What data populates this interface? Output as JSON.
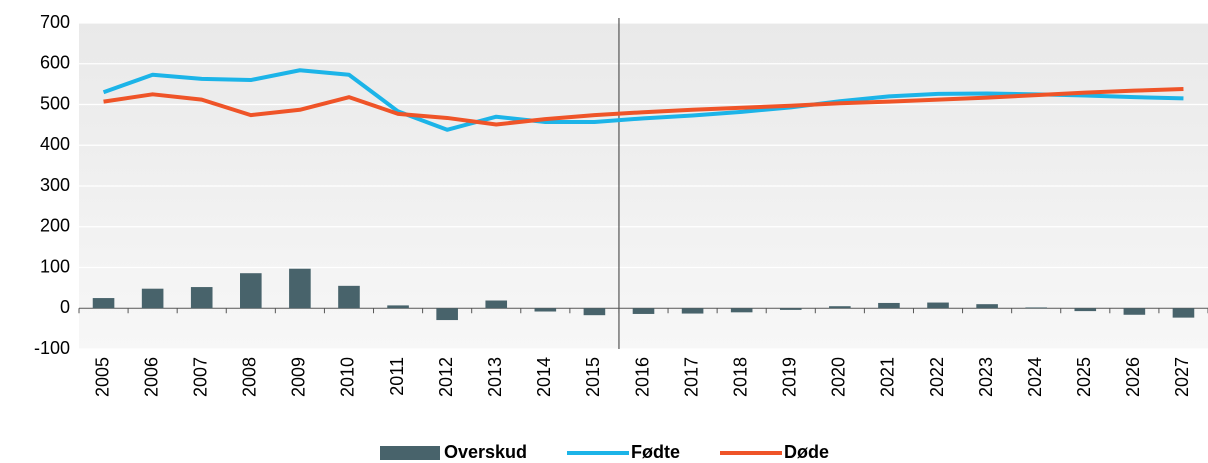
{
  "chart_data": {
    "type": "bar",
    "categories": [
      "2005",
      "2006",
      "2007",
      "2008",
      "2009",
      "2010",
      "2011",
      "2012",
      "2013",
      "2014",
      "2015",
      "2016",
      "2017",
      "2018",
      "2019",
      "2020",
      "2021",
      "2022",
      "2023",
      "2024",
      "2025",
      "2026",
      "2027"
    ],
    "series": [
      {
        "name": "Overskud",
        "type": "bar",
        "color": "#48636b",
        "values": [
          25,
          48,
          52,
          86,
          97,
          55,
          7,
          -29,
          19,
          -8,
          -17,
          -14,
          -13,
          -10,
          -4,
          5,
          13,
          14,
          10,
          2,
          -7,
          -16,
          -23
        ]
      },
      {
        "name": "Fødte",
        "type": "line",
        "color": "#1cb4e8",
        "values": [
          530,
          573,
          563,
          560,
          584,
          573,
          483,
          438,
          470,
          457,
          457,
          466,
          473,
          482,
          493,
          508,
          520,
          526,
          527,
          525,
          522,
          518,
          515
        ]
      },
      {
        "name": "Døde",
        "type": "line",
        "color": "#ef5428",
        "values": [
          507,
          525,
          512,
          474,
          487,
          518,
          477,
          467,
          451,
          464,
          474,
          481,
          487,
          492,
          497,
          503,
          507,
          512,
          517,
          523,
          529,
          534,
          538
        ]
      }
    ],
    "ylim": [
      -100,
      700
    ],
    "yticks": [
      -100,
      0,
      100,
      200,
      300,
      400,
      500,
      600,
      700
    ],
    "grid": true
  }
}
